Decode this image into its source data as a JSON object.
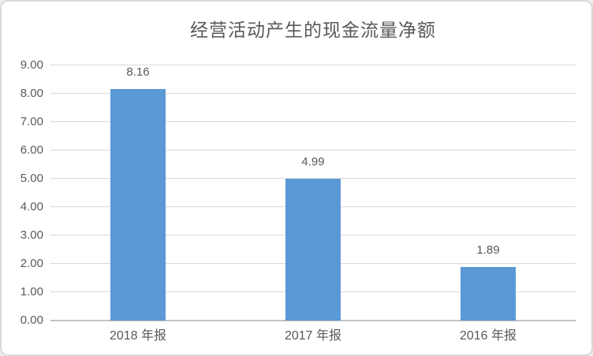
{
  "chart": {
    "title": "经营活动产生的现金流量净额"
  },
  "chart_data": {
    "type": "bar",
    "title": "经营活动产生的现金流量净额",
    "categories": [
      "2018 年报",
      "2017 年报",
      "2016 年报"
    ],
    "values": [
      8.16,
      4.99,
      1.89
    ],
    "data_labels": [
      "8.16",
      "4.99",
      "1.89"
    ],
    "xlabel": "",
    "ylabel": "",
    "ylim": [
      0,
      9
    ],
    "yticks": [
      0,
      1,
      2,
      3,
      4,
      5,
      6,
      7,
      8,
      9
    ],
    "ytick_labels": [
      "0.00",
      "1.00",
      "2.00",
      "3.00",
      "4.00",
      "5.00",
      "6.00",
      "7.00",
      "8.00",
      "9.00"
    ],
    "grid": true,
    "legend": false,
    "bar_color": "#5a99d6",
    "text_color": "#595959",
    "gridline_color": "#d9d9d9",
    "axis_line_color": "#c3c3c3",
    "border_color": "#d9d9d9"
  }
}
